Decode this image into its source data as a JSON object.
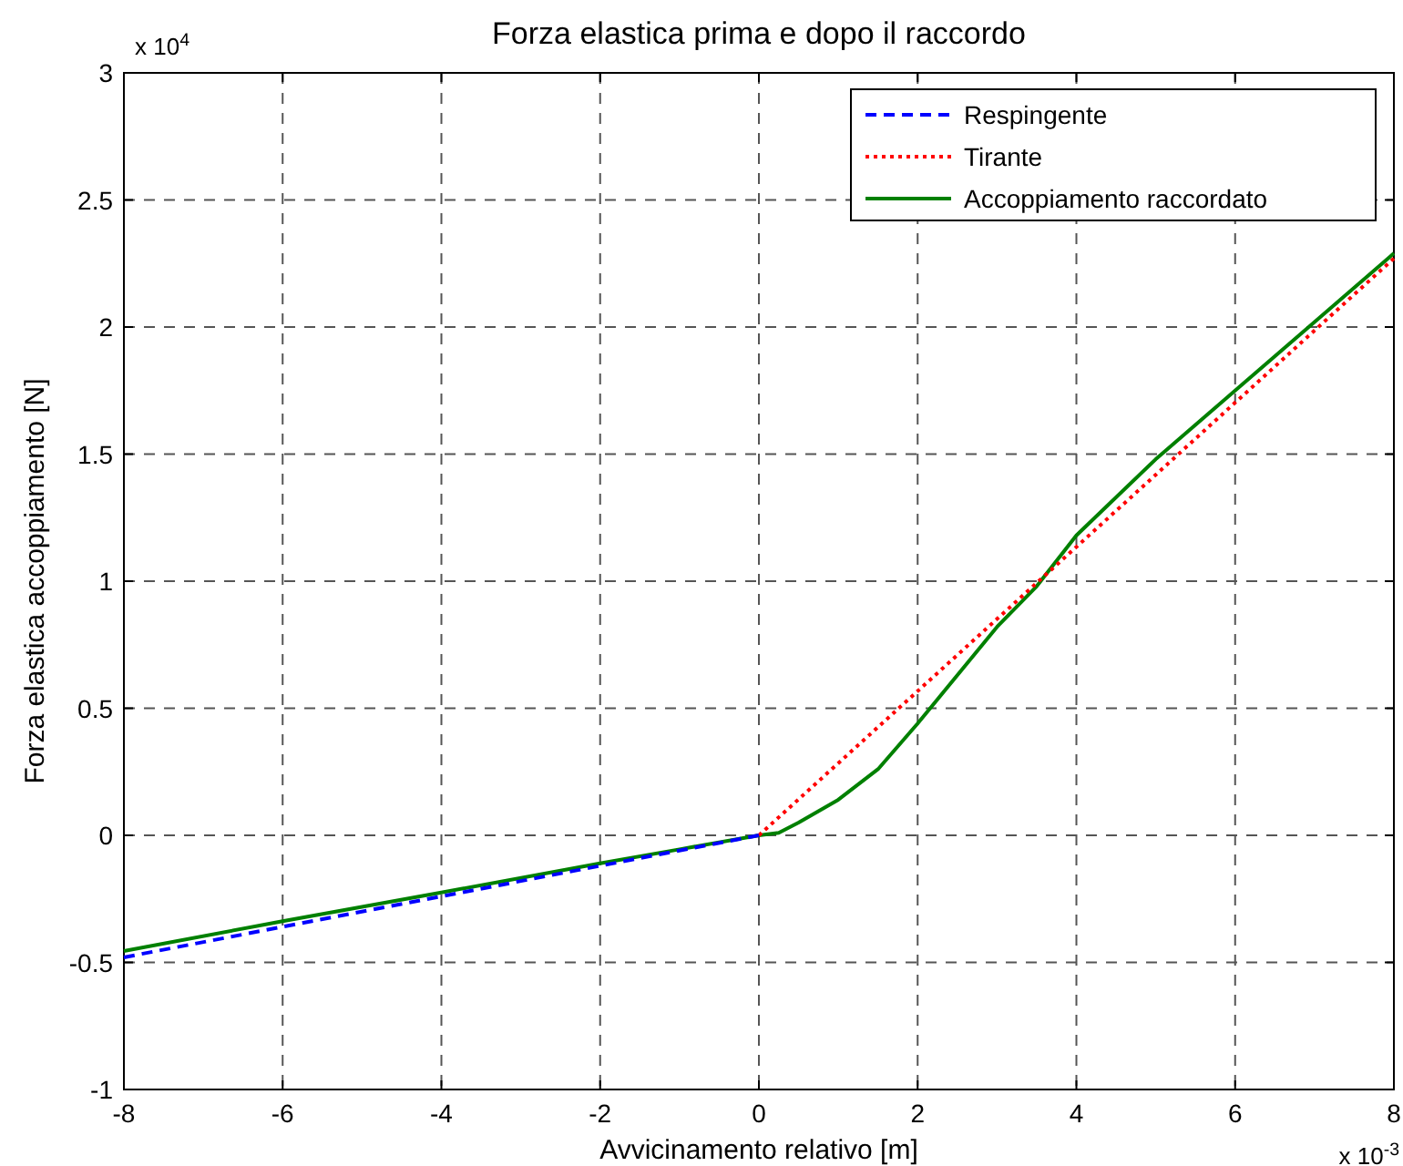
{
  "chart_data": {
    "type": "line",
    "title": "Forza elastica prima e dopo il raccordo",
    "xlabel": "Avvicinamento relativo [m]",
    "ylabel": "Forza elastica accoppiamento [N]",
    "annotations": [
      "x 10$^{4}$",
      "x 10$^{-3}$"
    ],
    "xlim": [
      -8,
      8
    ],
    "xticks": [
      -8,
      -6,
      -4,
      -2,
      0,
      2,
      4,
      6,
      8
    ],
    "ylim": [
      -1,
      3
    ],
    "yticks": [
      -1,
      -0.5,
      0,
      0.5,
      1,
      1.5,
      2,
      2.5,
      3
    ],
    "grid": true,
    "legend": "top right",
    "series": [
      {
        "name": "Respingente",
        "color": "#0000ff",
        "line_style": "dashed",
        "x": [
          -8,
          0
        ],
        "values": [
          -0.48,
          0
        ]
      },
      {
        "name": "Tirante",
        "color": "#ff0000",
        "line_style": "dotted",
        "x": [
          0,
          8
        ],
        "values": [
          0,
          2.27
        ]
      },
      {
        "name": "Accoppiamento raccordato",
        "color": "#008000",
        "line_style": "solid",
        "x": [
          -8,
          -6,
          -4,
          -2,
          -1,
          0,
          0.25,
          0.5,
          1,
          1.5,
          2,
          3,
          3.5,
          4,
          5,
          6,
          7,
          8
        ],
        "values": [
          -0.455,
          -0.338,
          -0.225,
          -0.11,
          -0.055,
          0,
          0.01,
          0.05,
          0.14,
          0.26,
          0.44,
          0.82,
          0.98,
          1.18,
          1.48,
          1.75,
          2.02,
          2.29
        ]
      }
    ]
  }
}
